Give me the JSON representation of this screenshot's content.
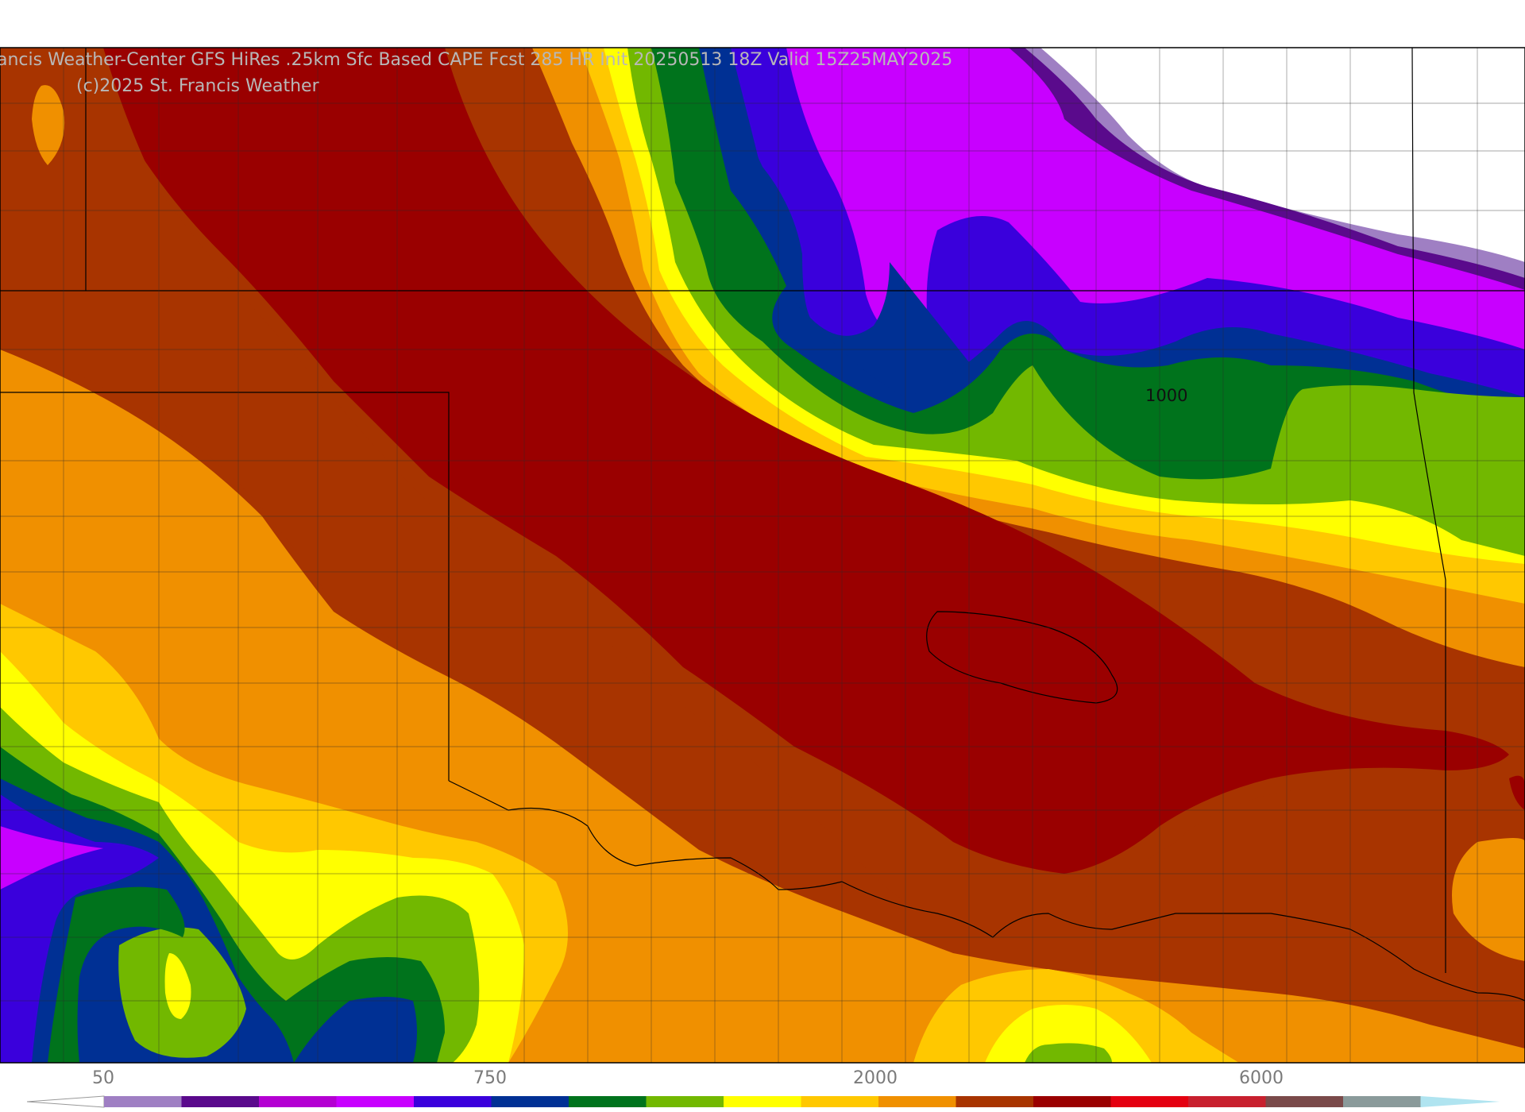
{
  "map": {
    "title": "ancis Weather-Center GFS HiRes .25km Sfc Based CAPE  Fcst 285 HR Init 20250513 18Z  Valid 15Z25MAY2025",
    "copyright": "(c)2025 St. Francis Weather",
    "contour_label": "1000"
  },
  "colorbar": {
    "tick_labels": [
      "50",
      "750",
      "2000",
      "6000"
    ],
    "colors": [
      "#9f7fc3",
      "#5a0a8c",
      "#b400d2",
      "#c800ff",
      "#3a00dc",
      "#003094",
      "#00731c",
      "#72b800",
      "#ffff00",
      "#ffc800",
      "#f09000",
      "#a83400",
      "#9a0000",
      "#e40010",
      "#c8202e",
      "#7a4a4a",
      "#8a9a9a",
      "#b0e4f0"
    ]
  },
  "colors": {
    "white": "#ffffff",
    "lavender": "#9f7fc3",
    "indigo": "#5a0a8c",
    "magenta": "#c800ff",
    "blue_violet": "#3a00dc",
    "navy": "#003094",
    "dark_green": "#00731c",
    "lime": "#72b800",
    "yellow": "#ffff00",
    "gold": "#ffc800",
    "orange": "#f09000",
    "rust": "#a83400",
    "dark_red": "#9a0000"
  }
}
